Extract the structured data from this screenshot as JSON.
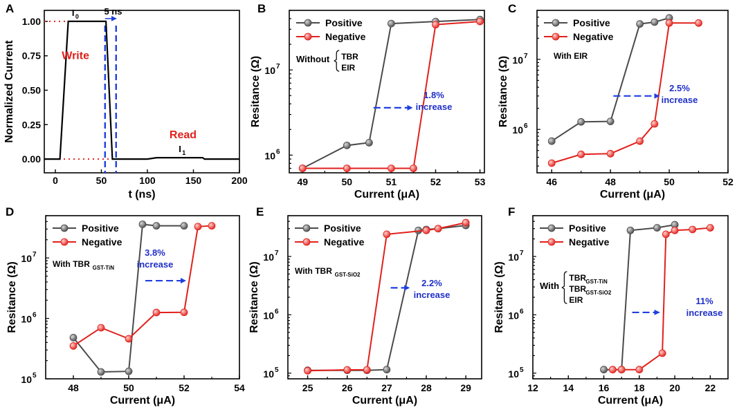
{
  "chart_data": [
    {
      "id": "A",
      "letter": "A",
      "type": "line",
      "xlabel": "t (ns)",
      "ylabel": "Normalized Current",
      "xlim": [
        -12,
        200
      ],
      "ylim": [
        -0.1,
        1.08
      ],
      "xticks": [
        0,
        50,
        100,
        150,
        200
      ],
      "yticks": [
        0.0,
        0.25,
        0.5,
        0.75,
        1.0
      ],
      "ytick_labels": [
        "0.00",
        "0.25",
        "0.50",
        "0.75",
        "1.00"
      ],
      "series": [
        {
          "name": "pulse",
          "color": "#000000",
          "x": [
            -12,
            5,
            14,
            55,
            62,
            100,
            110,
            160,
            162,
            200
          ],
          "y": [
            0,
            0,
            1,
            1,
            0,
            0,
            0.01,
            0.01,
            0,
            0
          ]
        }
      ],
      "ref_lines": [
        {
          "y": 1.0,
          "x_from": -12,
          "x_to": 14,
          "color": "#e0201b"
        },
        {
          "y": 0.0,
          "x_from": -12,
          "x_to": 62,
          "color": "#e0201b"
        }
      ],
      "vlines": [
        {
          "x": 54,
          "color": "#1f3fe0"
        },
        {
          "x": 66,
          "color": "#1f3fe0"
        }
      ],
      "annotations": {
        "i0": "I",
        "i0_sub": "0",
        "i1": "I",
        "i1_sub": "1",
        "gap": "5 ns",
        "write": "Write",
        "read": "Read"
      }
    },
    {
      "id": "B",
      "letter": "B",
      "type": "scatter-line",
      "yscale": "log",
      "xlabel": "Current (μA)",
      "ylabel": "Resitance (Ω)",
      "xlim": [
        48.7,
        53.1
      ],
      "ylim": [
        620000.0,
        50000000.0
      ],
      "xticks": [
        49,
        50,
        51,
        52,
        53
      ],
      "ytick_exps": [
        6,
        7
      ],
      "series": [
        {
          "name": "Positive",
          "color": "#4a4a4a",
          "x": [
            49,
            50,
            50.5,
            51,
            52,
            53
          ],
          "y": [
            700000.0,
            1300000.0,
            1400000.0,
            35000000.0,
            37000000.0,
            39000000.0
          ]
        },
        {
          "name": "Negative",
          "color": "#e0201b",
          "x": [
            49,
            50,
            51,
            51.5,
            52,
            53
          ],
          "y": [
            700000.0,
            700000.0,
            700000.0,
            700000.0,
            34000000.0,
            37000000.0
          ]
        }
      ],
      "arrow": {
        "x1": 50.6,
        "x2": 51.5,
        "y": 3600000.0
      },
      "increase_value": "1.8%",
      "increase_word": "increase",
      "note": {
        "prefix": "Without",
        "items": [
          {
            "t": "TBR",
            "s": ""
          },
          {
            "t": "EIR",
            "s": ""
          }
        ]
      }
    },
    {
      "id": "C",
      "letter": "C",
      "type": "scatter-line",
      "yscale": "log",
      "xlabel": "Current (μA)",
      "ylabel": "Resitance (Ω)",
      "xlim": [
        45.5,
        52
      ],
      "ylim": [
        240000.0,
        50000000.0
      ],
      "xticks": [
        46,
        48,
        50,
        52
      ],
      "ytick_exps": [
        6,
        7
      ],
      "series": [
        {
          "name": "Positive",
          "color": "#4a4a4a",
          "x": [
            46,
            47,
            48,
            49,
            49.5,
            50
          ],
          "y": [
            680000.0,
            1280000.0,
            1300000.0,
            32000000.0,
            34000000.0,
            39000000.0
          ]
        },
        {
          "name": "Negative",
          "color": "#e0201b",
          "x": [
            46,
            47,
            48,
            49,
            49.5,
            50,
            51
          ],
          "y": [
            330000.0,
            440000.0,
            450000.0,
            680000.0,
            1200000.0,
            33000000.0,
            33000000.0
          ]
        }
      ],
      "arrow": {
        "x1": 48.1,
        "x2": 49.7,
        "y": 3000000.0
      },
      "increase_value": "2.5%",
      "increase_word": "increase",
      "note": {
        "prefix": "With EIR",
        "items": []
      }
    },
    {
      "id": "D",
      "letter": "D",
      "type": "scatter-line",
      "yscale": "log",
      "xlabel": "Current (μA)",
      "ylabel": "Resitance (Ω)",
      "xlim": [
        47,
        54
      ],
      "ylim": [
        100000.0,
        50000000.0
      ],
      "xticks": [
        48,
        50,
        52,
        54
      ],
      "ytick_exps": [
        5,
        6,
        7
      ],
      "series": [
        {
          "name": "Positive",
          "color": "#4a4a4a",
          "x": [
            48,
            49,
            50,
            50.5,
            51,
            52
          ],
          "y": [
            480000.0,
            130000.0,
            133000.0,
            36000000.0,
            34000000.0,
            34000000.0
          ]
        },
        {
          "name": "Negative",
          "color": "#e0201b",
          "x": [
            48,
            49,
            50,
            51,
            52,
            52.5,
            53
          ],
          "y": [
            350000.0,
            700000.0,
            460000.0,
            1250000.0,
            1260000.0,
            33000000.0,
            34000000.0
          ]
        }
      ],
      "arrow": {
        "x1": 50.6,
        "x2": 52.1,
        "y": 4200000.0
      },
      "increase_value": "3.8%",
      "increase_word": "increase",
      "note": {
        "prefix": "With",
        "items": [
          {
            "t": "TBR",
            "s": "GST-TiN"
          }
        ]
      }
    },
    {
      "id": "E",
      "letter": "E",
      "type": "scatter-line",
      "yscale": "log",
      "xlabel": "Current (μA)",
      "ylabel": "Resitance (Ω)",
      "xlim": [
        24.5,
        29.4
      ],
      "ylim": [
        80000.0,
        50000000.0
      ],
      "xticks": [
        25,
        26,
        27,
        28,
        29
      ],
      "ytick_exps": [
        5,
        6,
        7
      ],
      "series": [
        {
          "name": "Positive",
          "color": "#4a4a4a",
          "x": [
            25,
            26,
            26.5,
            27,
            27.8,
            28,
            28.3,
            29
          ],
          "y": [
            112000.0,
            112000.0,
            112000.0,
            115000.0,
            28000000.0,
            29000000.0,
            30000000.0,
            34000000.0
          ]
        },
        {
          "name": "Negative",
          "color": "#e0201b",
          "x": [
            25,
            26,
            26.5,
            27,
            28,
            28.3,
            29
          ],
          "y": [
            110000.0,
            114000.0,
            114000.0,
            24000000.0,
            28000000.0,
            30000000.0,
            38000000.0
          ]
        }
      ],
      "arrow": {
        "x1": 27.1,
        "x2": 27.6,
        "y": 2900000.0
      },
      "increase_value": "2.2%",
      "increase_word": "increase",
      "note": {
        "prefix": "With",
        "items": [
          {
            "t": "TBR",
            "s": "GST-SiO2"
          }
        ]
      }
    },
    {
      "id": "F",
      "letter": "F",
      "type": "scatter-line",
      "yscale": "log",
      "xlabel": "Current (μA)",
      "ylabel": "Resitance (Ω)",
      "xlim": [
        12,
        23
      ],
      "ylim": [
        80000.0,
        50000000.0
      ],
      "xticks": [
        12,
        14,
        16,
        18,
        20,
        22
      ],
      "ytick_exps": [
        5,
        6,
        7
      ],
      "series": [
        {
          "name": "Positive",
          "color": "#4a4a4a",
          "x": [
            16,
            17,
            17.5,
            19,
            20
          ],
          "y": [
            115000.0,
            115000.0,
            28000000.0,
            31000000.0,
            35000000.0
          ]
        },
        {
          "name": "Negative",
          "color": "#e0201b",
          "x": [
            16.5,
            17,
            18,
            19.3,
            19.5,
            20,
            21,
            22
          ],
          "y": [
            115000.0,
            115000.0,
            115000.0,
            220000.0,
            24000000.0,
            28000000.0,
            29000000.0,
            31000000.0
          ]
        }
      ],
      "arrow": {
        "x1": 17.6,
        "x2": 19.2,
        "y": 1100000.0
      },
      "increase_value": "11%",
      "increase_word": "increase",
      "note": {
        "prefix": "With",
        "items": [
          {
            "t": "TBR",
            "s": "GST-TiN"
          },
          {
            "t": "TBR",
            "s": "GST-SiO2"
          },
          {
            "t": "EIR",
            "s": ""
          }
        ]
      }
    }
  ],
  "colors": {
    "positive": "#4a4a4a",
    "negative": "#e0201b",
    "arrow": "#1f3fe0",
    "increase_text": "#1f2fc8",
    "write_text": "#e0201b"
  }
}
